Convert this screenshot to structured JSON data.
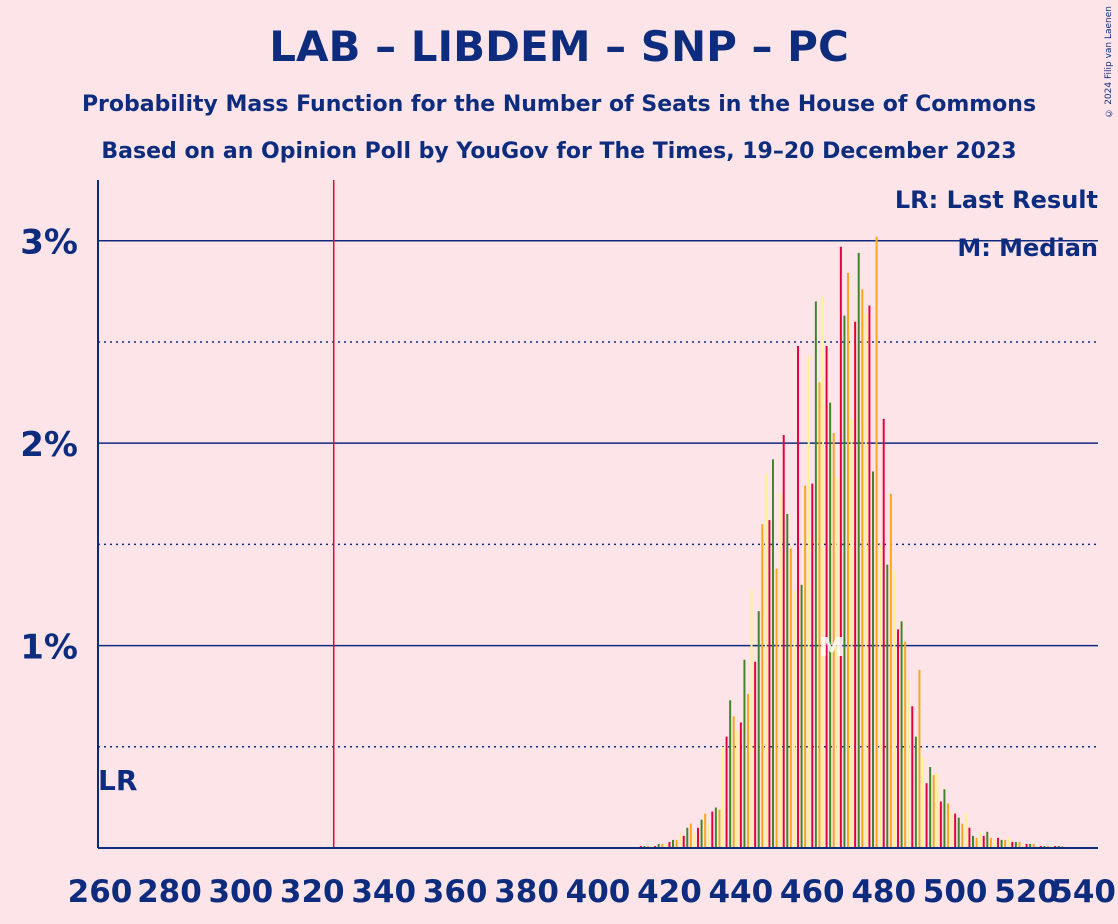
{
  "title": "LAB – LIBDEM – SNP – PC",
  "subtitle1": "Probability Mass Function for the Number of Seats in the House of Commons",
  "subtitle2": "Based on an Opinion Poll by YouGov for The Times, 19–20 December 2023",
  "copyright": "© 2024 Filip van Laenen",
  "legend": {
    "lr": "LR: Last Result",
    "median": "M: Median"
  },
  "colors": {
    "background": "#FDE4E8",
    "text": "#0E2C7E",
    "red": "#E4003B",
    "green": "#3F8428",
    "orange": "#FAA61A",
    "yellow": "#FDF38E",
    "last_result_line": "#E4003B"
  },
  "chart_data": {
    "type": "bar",
    "xlabel": "",
    "ylabel": "",
    "xlim": [
      260,
      540
    ],
    "ylim": [
      0,
      3.3
    ],
    "x_ticks": [
      260,
      280,
      300,
      320,
      340,
      360,
      380,
      400,
      420,
      440,
      460,
      480,
      500,
      520,
      540
    ],
    "y_ticks": [
      {
        "value": 1,
        "label": "1%"
      },
      {
        "value": 2,
        "label": "2%"
      },
      {
        "value": 3,
        "label": "3%"
      }
    ],
    "y_dotted": [
      0.5,
      1.5,
      2.5
    ],
    "last_result": {
      "value": 326,
      "label": "LR"
    },
    "median": {
      "value": 466,
      "label": "M"
    },
    "bar_colors_cycle": [
      "red",
      "green",
      "orange",
      "yellow"
    ],
    "points": [
      [
        412,
        0.01
      ],
      [
        413,
        0.01
      ],
      [
        414,
        0.01
      ],
      [
        415,
        0.01
      ],
      [
        416,
        0.01
      ],
      [
        417,
        0.02
      ],
      [
        418,
        0.02
      ],
      [
        419,
        0.02
      ],
      [
        420,
        0.03
      ],
      [
        421,
        0.04
      ],
      [
        422,
        0.04
      ],
      [
        423,
        0.07
      ],
      [
        424,
        0.06
      ],
      [
        425,
        0.1
      ],
      [
        426,
        0.12
      ],
      [
        427,
        0.07
      ],
      [
        428,
        0.1
      ],
      [
        429,
        0.14
      ],
      [
        430,
        0.17
      ],
      [
        431,
        0.12
      ],
      [
        432,
        0.18
      ],
      [
        433,
        0.2
      ],
      [
        434,
        0.19
      ],
      [
        435,
        0.5
      ],
      [
        436,
        0.55
      ],
      [
        437,
        0.73
      ],
      [
        438,
        0.65
      ],
      [
        439,
        0.58
      ],
      [
        440,
        0.62
      ],
      [
        441,
        0.93
      ],
      [
        442,
        0.76
      ],
      [
        443,
        1.28
      ],
      [
        444,
        0.92
      ],
      [
        445,
        1.17
      ],
      [
        446,
        1.6
      ],
      [
        447,
        1.85
      ],
      [
        448,
        1.62
      ],
      [
        449,
        1.92
      ],
      [
        450,
        1.38
      ],
      [
        451,
        1.75
      ],
      [
        452,
        2.04
      ],
      [
        453,
        1.65
      ],
      [
        454,
        1.48
      ],
      [
        455,
        1.27
      ],
      [
        456,
        2.48
      ],
      [
        457,
        1.3
      ],
      [
        458,
        1.79
      ],
      [
        459,
        2.43
      ],
      [
        460,
        1.8
      ],
      [
        461,
        2.7
      ],
      [
        462,
        2.3
      ],
      [
        463,
        2.72
      ],
      [
        464,
        2.48
      ],
      [
        465,
        2.2
      ],
      [
        466,
        2.05
      ],
      [
        467,
        1.83
      ],
      [
        468,
        2.97
      ],
      [
        469,
        2.63
      ],
      [
        470,
        2.84
      ],
      [
        471,
        2.12
      ],
      [
        472,
        2.6
      ],
      [
        473,
        2.94
      ],
      [
        474,
        2.76
      ],
      [
        475,
        2.64
      ],
      [
        476,
        2.68
      ],
      [
        477,
        1.86
      ],
      [
        478,
        3.02
      ],
      [
        479,
        1.5
      ],
      [
        480,
        2.12
      ],
      [
        481,
        1.4
      ],
      [
        482,
        1.75
      ],
      [
        483,
        1.37
      ],
      [
        484,
        1.08
      ],
      [
        485,
        1.12
      ],
      [
        486,
        1.02
      ],
      [
        487,
        0.83
      ],
      [
        488,
        0.7
      ],
      [
        489,
        0.55
      ],
      [
        490,
        0.88
      ],
      [
        491,
        0.45
      ],
      [
        492,
        0.32
      ],
      [
        493,
        0.4
      ],
      [
        494,
        0.36
      ],
      [
        495,
        0.37
      ],
      [
        496,
        0.23
      ],
      [
        497,
        0.29
      ],
      [
        498,
        0.22
      ],
      [
        499,
        0.18
      ],
      [
        500,
        0.17
      ],
      [
        501,
        0.15
      ],
      [
        502,
        0.12
      ],
      [
        503,
        0.17
      ],
      [
        504,
        0.1
      ],
      [
        505,
        0.06
      ],
      [
        506,
        0.05
      ],
      [
        507,
        0.08
      ],
      [
        508,
        0.06
      ],
      [
        509,
        0.08
      ],
      [
        510,
        0.05
      ],
      [
        511,
        0.04
      ],
      [
        512,
        0.05
      ],
      [
        513,
        0.04
      ],
      [
        514,
        0.04
      ],
      [
        515,
        0.05
      ],
      [
        516,
        0.03
      ],
      [
        517,
        0.03
      ],
      [
        518,
        0.03
      ],
      [
        519,
        0.02
      ],
      [
        520,
        0.02
      ],
      [
        521,
        0.02
      ],
      [
        522,
        0.02
      ],
      [
        523,
        0.01
      ],
      [
        524,
        0.01
      ],
      [
        525,
        0.01
      ],
      [
        526,
        0.01
      ],
      [
        527,
        0.01
      ],
      [
        528,
        0.01
      ],
      [
        529,
        0.01
      ],
      [
        530,
        0.01
      ]
    ]
  }
}
